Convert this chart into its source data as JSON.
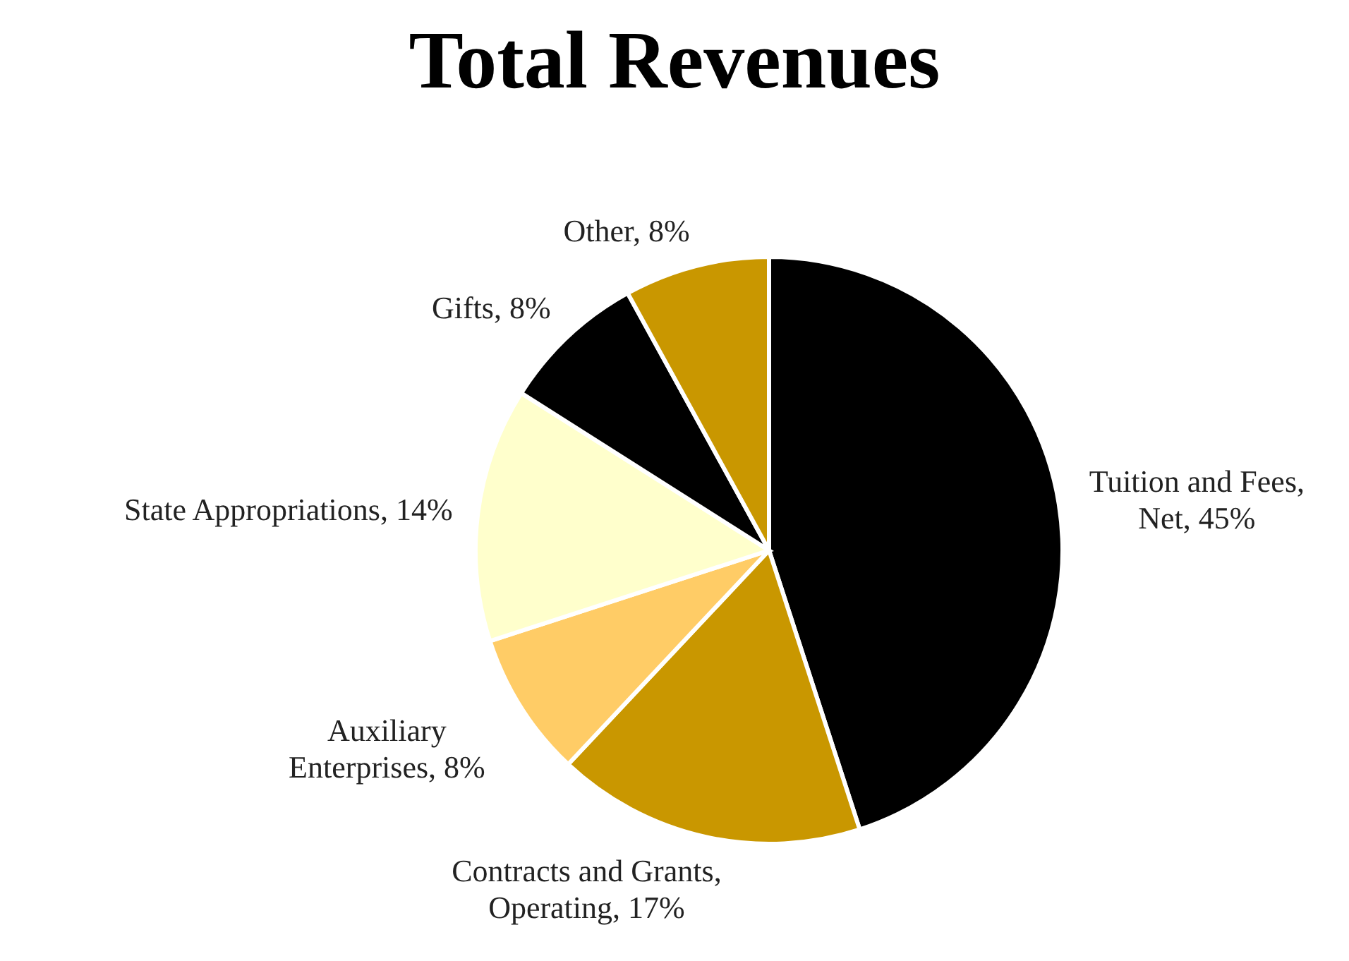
{
  "chart_data": {
    "type": "pie",
    "title": "Total Revenues",
    "categories": [
      "Tuition and Fees, Net",
      "Contracts and Grants, Operating",
      "Auxiliary Enterprises",
      "State Appropriations",
      "Gifts",
      "Other"
    ],
    "values": [
      45,
      17,
      8,
      14,
      8,
      8
    ],
    "value_labels": [
      "45%",
      "17%",
      "8%",
      "14%",
      "8%",
      "8%"
    ],
    "colors": [
      "#000000",
      "#c99700",
      "#ffcc66",
      "#ffffcc",
      "#000000",
      "#c99700"
    ]
  }
}
